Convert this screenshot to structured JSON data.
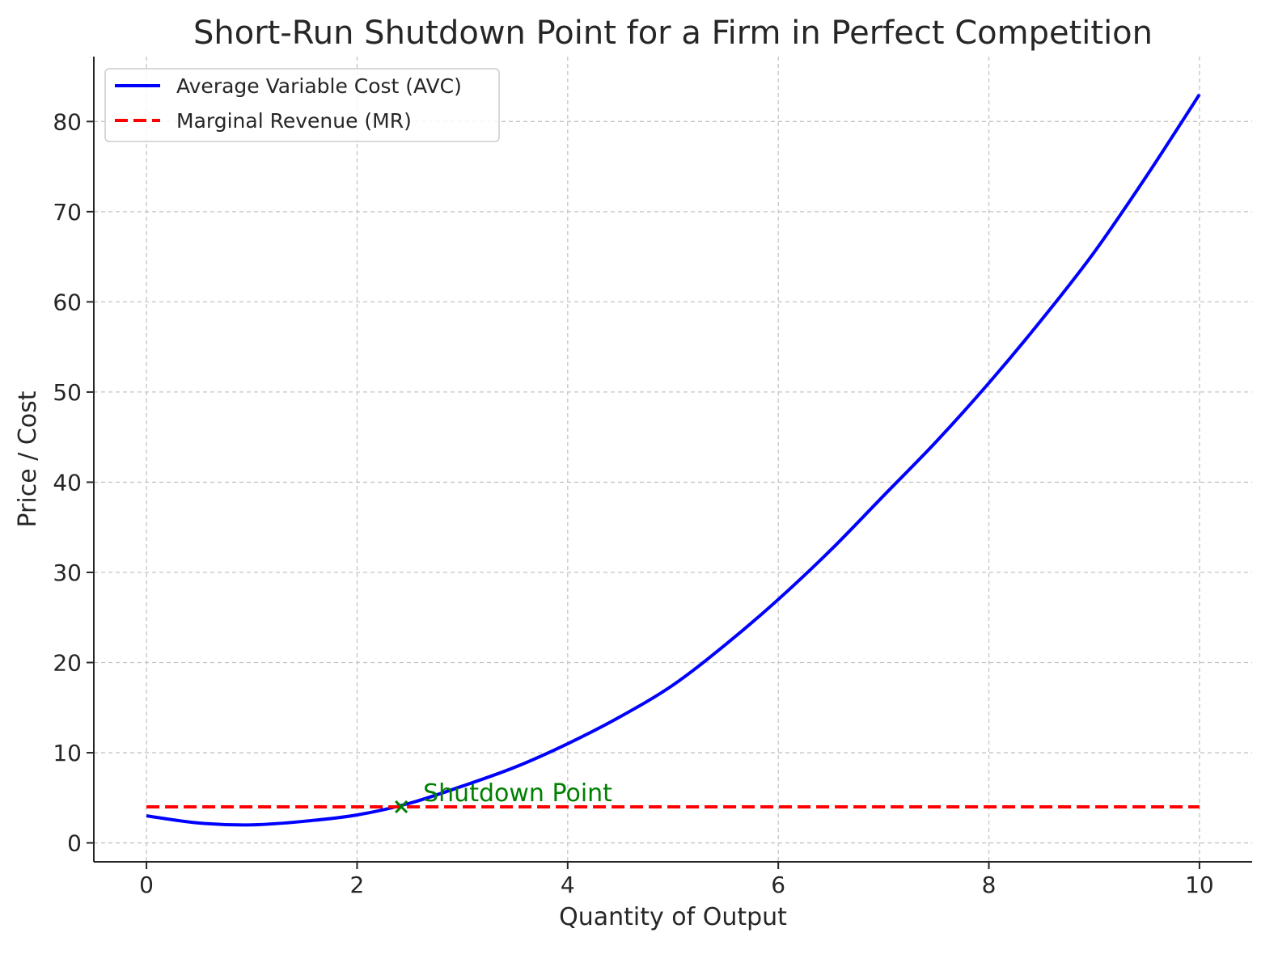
{
  "chart_data": {
    "type": "line",
    "title": "Short-Run Shutdown Point for a Firm in Perfect Competition",
    "xlabel": "Quantity of Output",
    "ylabel": "Price / Cost",
    "xlim": [
      -0.5,
      10.5
    ],
    "ylim": [
      -2.1,
      87.2
    ],
    "x_ticks": [
      0,
      2,
      4,
      6,
      8,
      10
    ],
    "x_tick_labels": [
      "0",
      "2",
      "4",
      "6",
      "8",
      "10"
    ],
    "y_ticks": [
      0,
      10,
      20,
      30,
      40,
      50,
      60,
      70,
      80
    ],
    "y_tick_labels": [
      "0",
      "10",
      "20",
      "30",
      "40",
      "50",
      "60",
      "70",
      "80"
    ],
    "grid": true,
    "legend_position": "top-left",
    "series": [
      {
        "name": "Average Variable Cost (AVC)",
        "color": "#0000ff",
        "style": "solid",
        "x": [
          0,
          0.5,
          1,
          1.5,
          2,
          2.5,
          3,
          3.5,
          4,
          4.5,
          5,
          5.5,
          6,
          6.5,
          7,
          7.5,
          8,
          8.5,
          9,
          9.5,
          10
        ],
        "y": [
          3,
          2.2,
          2,
          2.4,
          3.1,
          4.4,
          6.3,
          8.4,
          11,
          14,
          17.5,
          22,
          27,
          32.5,
          38.5,
          44.5,
          51,
          58,
          65.5,
          74,
          83
        ]
      },
      {
        "name": "Marginal Revenue (MR)",
        "color": "#ff0000",
        "style": "dashed",
        "x": [
          0,
          10
        ],
        "y": [
          4,
          4
        ]
      }
    ],
    "annotations": [
      {
        "text": "Shutdown Point",
        "x": 2.42,
        "y": 4,
        "marker": "x",
        "color": "#008000"
      }
    ]
  }
}
